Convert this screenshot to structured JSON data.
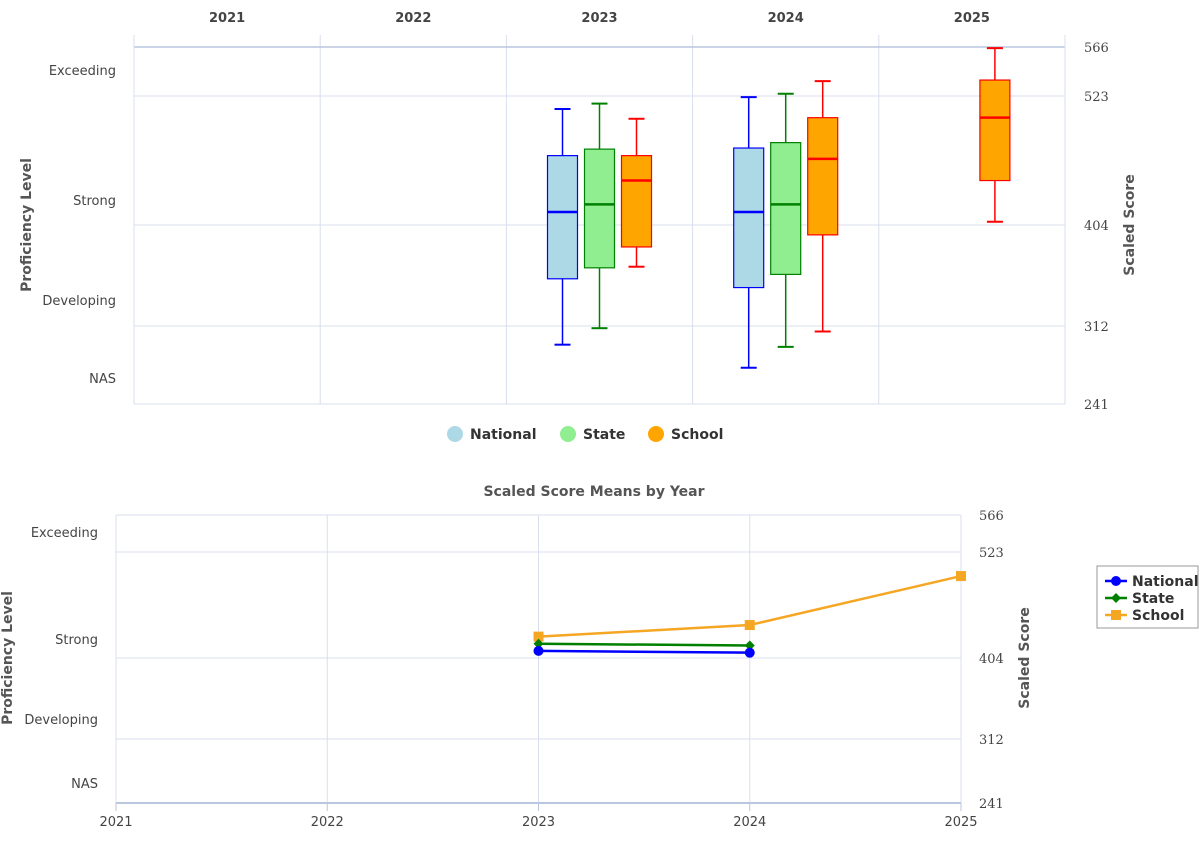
{
  "colors": {
    "grid": "#d8dfec",
    "national_fill": "#add8e6",
    "national_line": "#0000ff",
    "state_fill": "#90ee90",
    "state_line": "#008000",
    "school_fill": "#ffa500",
    "school_line": "#ff0000",
    "school_mean_line": "#f5a623"
  },
  "chart_data": [
    {
      "type": "boxplot",
      "title": "",
      "years": [
        "2021",
        "2022",
        "2023",
        "2024",
        "2025"
      ],
      "left_axis": {
        "label": "Proficiency Level",
        "levels": [
          "Exceeding",
          "Strong",
          "Developing",
          "NAS"
        ]
      },
      "right_axis": {
        "label": "Scaled Score",
        "ticks": [
          566,
          523,
          404,
          312,
          241
        ],
        "range": [
          241,
          566
        ]
      },
      "legend": {
        "position": "bottom-center",
        "items": [
          "National",
          "State",
          "School"
        ]
      },
      "series": [
        {
          "name": "National",
          "boxes": [
            {
              "year": "2023",
              "min": 295,
              "q1": 355,
              "median": 416,
              "q3": 468,
              "max": 511
            },
            {
              "year": "2024",
              "min": 274,
              "q1": 347,
              "median": 416,
              "q3": 475,
              "max": 522
            }
          ]
        },
        {
          "name": "State",
          "boxes": [
            {
              "year": "2023",
              "min": 310,
              "q1": 365,
              "median": 423,
              "q3": 474,
              "max": 516
            },
            {
              "year": "2024",
              "min": 293,
              "q1": 359,
              "median": 423,
              "q3": 480,
              "max": 525
            }
          ]
        },
        {
          "name": "School",
          "boxes": [
            {
              "year": "2023",
              "min": 366,
              "q1": 384,
              "median": 445,
              "q3": 468,
              "max": 502
            },
            {
              "year": "2024",
              "min": 307,
              "q1": 395,
              "median": 465,
              "q3": 503,
              "max": 536
            },
            {
              "year": "2025",
              "min": 407,
              "q1": 445,
              "median": 503,
              "q3": 537,
              "max": 565
            }
          ]
        }
      ]
    },
    {
      "type": "line",
      "title": "Scaled Score Means by Year",
      "x": [
        "2021",
        "2022",
        "2023",
        "2024",
        "2025"
      ],
      "left_axis": {
        "label": "Proficiency Level",
        "levels": [
          "Exceeding",
          "Strong",
          "Developing",
          "NAS"
        ]
      },
      "right_axis": {
        "label": "Scaled Score",
        "ticks": [
          566,
          523,
          404,
          312,
          241
        ],
        "range": [
          241,
          566
        ]
      },
      "legend": {
        "position": "right",
        "items": [
          "National",
          "State",
          "School"
        ]
      },
      "series": [
        {
          "name": "National",
          "marker": "circle",
          "points": [
            {
              "x": "2023",
              "y": 412
            },
            {
              "x": "2024",
              "y": 410
            }
          ]
        },
        {
          "name": "State",
          "marker": "diamond",
          "points": [
            {
              "x": "2023",
              "y": 420
            },
            {
              "x": "2024",
              "y": 418
            }
          ]
        },
        {
          "name": "School",
          "marker": "square",
          "points": [
            {
              "x": "2023",
              "y": 428
            },
            {
              "x": "2024",
              "y": 441
            },
            {
              "x": "2025",
              "y": 496
            }
          ]
        }
      ]
    }
  ]
}
